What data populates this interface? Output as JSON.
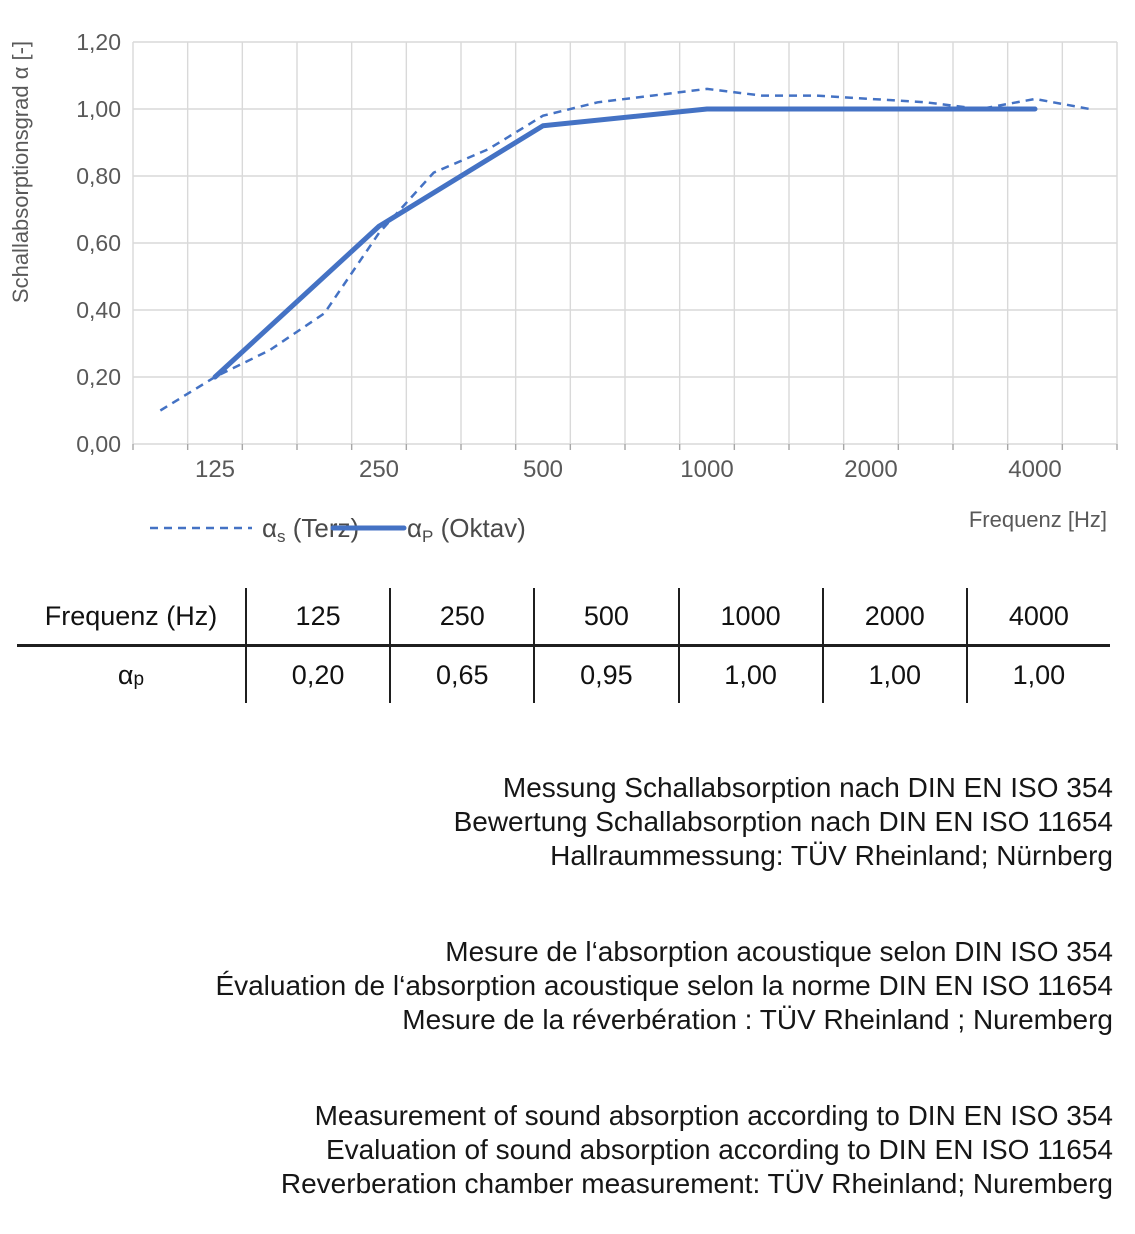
{
  "chart": {
    "y_axis_title": "Schallabsorptionsgrad α [-]",
    "x_axis_title": "Frequenz [Hz]",
    "legend": [
      {
        "style": "dashed",
        "alpha": "α",
        "sub": "s",
        "rest": " (Terz)"
      },
      {
        "style": "solid",
        "alpha": "α",
        "sub": "P",
        "rest": " (Oktav)"
      }
    ]
  },
  "chart_data": {
    "type": "line",
    "title": "",
    "xlabel": "Frequenz [Hz]",
    "ylabel": "Schallabsorptionsgrad α [-]",
    "x_scale": "logarithmic third-octave categories",
    "grid": true,
    "legend_position": "bottom-left",
    "ylim": [
      0,
      1.2
    ],
    "y_ticks": [
      {
        "v": 0.0,
        "label": "0,00"
      },
      {
        "v": 0.2,
        "label": "0,20"
      },
      {
        "v": 0.4,
        "label": "0,40"
      },
      {
        "v": 0.6,
        "label": "0,60"
      },
      {
        "v": 0.8,
        "label": "0,80"
      },
      {
        "v": 1.0,
        "label": "1,00"
      },
      {
        "v": 1.2,
        "label": "1,20"
      }
    ],
    "x_categories": [
      100,
      125,
      160,
      200,
      250,
      315,
      400,
      500,
      630,
      800,
      1000,
      1250,
      1600,
      2000,
      2500,
      3150,
      4000,
      5000
    ],
    "x_tick_labels": [
      125,
      250,
      500,
      1000,
      2000,
      4000
    ],
    "series": [
      {
        "name": "αs (Terz)",
        "style": "dashed",
        "x": [
          100,
          125,
          160,
          200,
          250,
          315,
          400,
          500,
          630,
          800,
          1000,
          1250,
          1600,
          2000,
          2500,
          3150,
          4000,
          5000
        ],
        "values": [
          0.1,
          0.2,
          0.28,
          0.39,
          0.63,
          0.81,
          0.88,
          0.98,
          1.02,
          1.04,
          1.06,
          1.04,
          1.04,
          1.03,
          1.02,
          1.0,
          1.03,
          1.0
        ]
      },
      {
        "name": "αP (Oktav)",
        "style": "solid",
        "x": [
          125,
          250,
          500,
          1000,
          2000,
          4000
        ],
        "values": [
          0.2,
          0.65,
          0.95,
          1.0,
          1.0,
          1.0
        ]
      }
    ],
    "colors": {
      "series": "#4472C4",
      "grid": "#D9D9D9",
      "axis_text": "#595959"
    }
  },
  "table": {
    "header": [
      "Frequenz (Hz)",
      "125",
      "250",
      "500",
      "1000",
      "2000",
      "4000"
    ],
    "row_label": {
      "alpha": "α",
      "sub": "p"
    },
    "values": [
      "0,20",
      "0,65",
      "0,95",
      "1,00",
      "1,00",
      "1,00"
    ]
  },
  "notes": {
    "german": [
      "Messung Schallabsorption nach DIN EN ISO 354",
      "Bewertung Schallabsorption nach DIN EN ISO 11654",
      "Hallraummessung: TÜV Rheinland; Nürnberg"
    ],
    "french": [
      "Mesure de l‘absorption acoustique selon DIN ISO 354",
      "Évaluation de l‘absorption acoustique selon la norme DIN EN ISO 11654",
      "Mesure de la réverbération : TÜV Rheinland ; Nuremberg"
    ],
    "english": [
      "Measurement of sound absorption according to DIN EN ISO 354",
      "Evaluation of sound absorption according to DIN EN ISO 11654",
      "Reverberation chamber measurement: TÜV Rheinland; Nuremberg"
    ]
  }
}
